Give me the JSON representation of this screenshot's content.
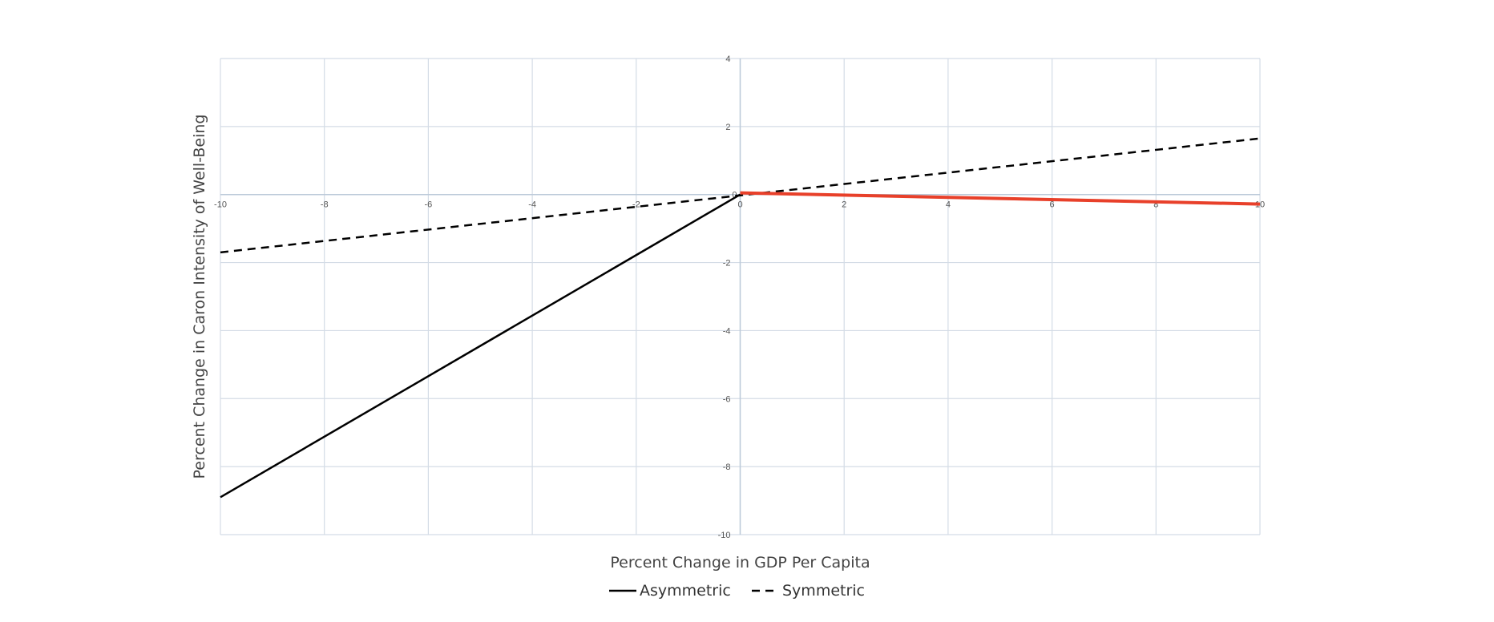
{
  "chart_data": {
    "type": "line",
    "title": "",
    "xlabel": "Percent Change in GDP Per Capita",
    "ylabel": "Percent Change in Caron Intensity of Well-Being",
    "xlim": [
      -10,
      10
    ],
    "ylim": [
      -10,
      4
    ],
    "x_ticks": [
      -10,
      -8,
      -6,
      -4,
      -2,
      0,
      2,
      4,
      6,
      8,
      10
    ],
    "y_ticks": [
      4,
      2,
      0,
      -2,
      -4,
      -6,
      -8,
      -10
    ],
    "grid": true,
    "legend_position": "bottom",
    "series": [
      {
        "name": "Asymmetric",
        "style": "solid",
        "color": "#000000",
        "points": [
          [
            -10,
            -8.9
          ],
          [
            0,
            0
          ]
        ]
      },
      {
        "name": "Symmetric",
        "style": "dashed",
        "color": "#000000",
        "points": [
          [
            -10,
            -1.7
          ],
          [
            10,
            1.65
          ]
        ]
      },
      {
        "style": "solid",
        "color": "#e8402a",
        "points": [
          [
            0,
            0.05
          ],
          [
            10,
            -0.28
          ]
        ]
      }
    ]
  }
}
